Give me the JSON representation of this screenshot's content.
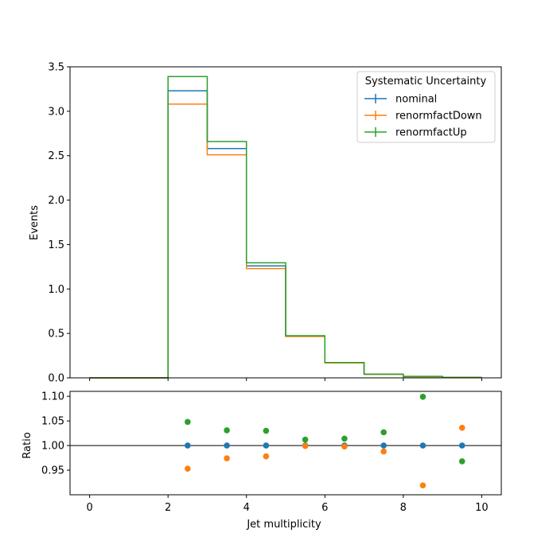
{
  "chart_data": [
    {
      "type": "step",
      "panel": "main",
      "xlabel": "",
      "ylabel": "Events",
      "xlim": [
        -0.5,
        10.5
      ],
      "ylim": [
        0,
        3.5
      ],
      "bin_edges": [
        0,
        1,
        2,
        3,
        4,
        5,
        6,
        7,
        8,
        9,
        10
      ],
      "x_ticks": [
        "0",
        "2",
        "4",
        "6",
        "8",
        "10"
      ],
      "y_ticks": [
        "0.0",
        "0.5",
        "1.0",
        "1.5",
        "2.0",
        "2.5",
        "3.0",
        "3.5"
      ],
      "legend": {
        "title": "Systematic Uncertainty",
        "placement": "top-right"
      },
      "series": [
        {
          "name": "nominal",
          "color": "#1f77b4",
          "values": [
            0,
            0,
            3.23,
            2.58,
            1.26,
            0.47,
            0.17,
            0.04,
            0.015,
            0.005
          ]
        },
        {
          "name": "renormfactDown",
          "color": "#ff7f0e",
          "values": [
            0,
            0,
            3.08,
            2.51,
            1.23,
            0.465,
            0.168,
            0.039,
            0.0138,
            0.0052
          ]
        },
        {
          "name": "renormfactUp",
          "color": "#2ca02c",
          "values": [
            0,
            0,
            3.39,
            2.66,
            1.295,
            0.475,
            0.172,
            0.041,
            0.0165,
            0.0048
          ]
        }
      ]
    },
    {
      "type": "scatter",
      "panel": "ratio",
      "xlabel": "Jet multiplicity",
      "ylabel": "Ratio",
      "xlim": [
        -0.5,
        10.5
      ],
      "ylim": [
        0.9,
        1.11
      ],
      "x_ticks": [
        "0",
        "2",
        "4",
        "6",
        "8",
        "10"
      ],
      "y_ticks": [
        "0.95",
        "1.00",
        "1.05",
        "1.10"
      ],
      "reference_line": 1.0,
      "x": [
        2.5,
        3.5,
        4.5,
        5.5,
        6.5,
        7.5,
        8.5,
        9.5
      ],
      "series": [
        {
          "name": "nominal",
          "color": "#1f77b4",
          "values": [
            1.0,
            1.0,
            1.0,
            1.0,
            1.0,
            1.0,
            1.0,
            1.0
          ]
        },
        {
          "name": "renormfactDown",
          "color": "#ff7f0e",
          "values": [
            0.953,
            0.974,
            0.978,
            0.999,
            0.998,
            0.988,
            0.919,
            1.036
          ]
        },
        {
          "name": "renormfactUp",
          "color": "#2ca02c",
          "values": [
            1.048,
            1.031,
            1.03,
            1.012,
            1.014,
            1.027,
            1.099,
            0.968
          ]
        }
      ]
    }
  ]
}
